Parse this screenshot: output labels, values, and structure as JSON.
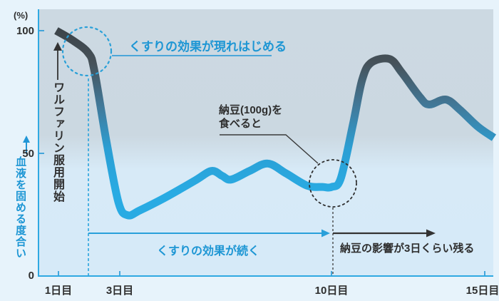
{
  "figure": {
    "unit_label": "(%)",
    "y_axis_label": "血液を固める度合い",
    "y_ticks": [
      "100",
      "50",
      "0"
    ],
    "x_ticks": [
      "1日目",
      "3日目",
      "10日目",
      "15日目"
    ],
    "annotations": {
      "drug_effect_start": "くすりの効果が現れはじめる",
      "warfarin_start": "ワルファリン服用開始",
      "natto_eat_line1": "納豆(100g)を",
      "natto_eat_line2": "食べると",
      "drug_effect_continues": "くすりの効果が続く",
      "natto_effect_remains": "納豆の影響が3日くらい残る"
    },
    "colors": {
      "accent_blue": "#1d96d4",
      "curve_blue": "#29abe3",
      "curve_dark": "#3b4247",
      "axis_blue": "#2fa9e2",
      "text_dark": "#2e2e2e",
      "plot_bg_top": "#ccd9e2",
      "plot_bg_bottom": "#d6eaf8",
      "outer_bg": "#e7f3fb"
    }
  },
  "chart_data": {
    "type": "line",
    "title": "",
    "xlabel": "",
    "ylabel": "血液を固める度合い",
    "y_unit": "%",
    "ylim": [
      0,
      100
    ],
    "yticks": [
      0,
      50,
      100
    ],
    "xticks_days": [
      1,
      3,
      10,
      15
    ],
    "xtick_labels": [
      "1日目",
      "3日目",
      "10日目",
      "15日目"
    ],
    "grid": false,
    "legend": false,
    "series": [
      {
        "name": "血液を固める度合い",
        "points_day_pct": [
          [
            0.95,
            100
          ],
          [
            1.5,
            96
          ],
          [
            2.0,
            91
          ],
          [
            2.2,
            84
          ],
          [
            2.6,
            55
          ],
          [
            3.0,
            30
          ],
          [
            3.3,
            25
          ],
          [
            3.7,
            27
          ],
          [
            4.5,
            32
          ],
          [
            5.5,
            39
          ],
          [
            6.05,
            43
          ],
          [
            6.4,
            41
          ],
          [
            6.7,
            39.5
          ],
          [
            7.3,
            43
          ],
          [
            7.9,
            46
          ],
          [
            8.5,
            42
          ],
          [
            9.2,
            37
          ],
          [
            9.7,
            36.5
          ],
          [
            10.0,
            36.5
          ],
          [
            10.3,
            40
          ],
          [
            10.7,
            62
          ],
          [
            11.0,
            80
          ],
          [
            11.3,
            87
          ],
          [
            11.9,
            88.5
          ],
          [
            12.3,
            83
          ],
          [
            12.9,
            73
          ],
          [
            13.2,
            70
          ],
          [
            13.75,
            72
          ],
          [
            14.2,
            68
          ],
          [
            14.8,
            61
          ],
          [
            15.33,
            56.5
          ]
        ]
      }
    ],
    "events": [
      {
        "day": 2,
        "pct": 91,
        "label": "くすりの効果が現れはじめる"
      },
      {
        "day": 10,
        "pct": 36.5,
        "label": "納豆(100g)を食べると"
      }
    ],
    "spans": [
      {
        "from_day": 2,
        "to_day": 10,
        "label": "くすりの効果が続く"
      },
      {
        "from_day": 10,
        "to_day": 13.4,
        "label": "納豆の影響が3日くらい残る"
      }
    ]
  }
}
